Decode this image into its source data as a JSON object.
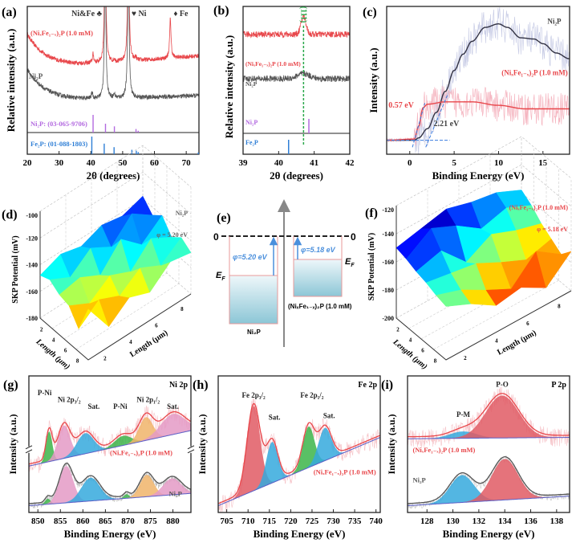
{
  "panel_labels": [
    "(a)",
    "(b)",
    "(c)",
    "(d)",
    "(e)",
    "(f)",
    "(g)",
    "(h)",
    "(i)"
  ],
  "colors": {
    "red": "#e8474b",
    "gray": "#555555",
    "purple": "#b36ae0",
    "blue": "#2f7fd6",
    "green": "#2aa84a"
  },
  "chart_data": [
    {
      "panel": "a",
      "type": "line",
      "xlabel": "2θ (degrees)",
      "ylabel": "Relative intensity (a.u.)",
      "xlim": [
        20,
        74
      ],
      "xticks": [
        20,
        30,
        40,
        50,
        60,
        70
      ],
      "series": [
        {
          "name": "(NiₓFe₁₋ₓ)₂P (1.0 mM)",
          "color": "#e8474b",
          "peaks": [
            [
              40.7,
              0.7
            ],
            [
              44.5,
              12
            ],
            [
              47.4,
              0.2
            ],
            [
              51.8,
              12
            ],
            [
              54.1,
              0.25
            ],
            [
              65.0,
              3.2
            ]
          ]
        },
        {
          "name": "Ni₂P",
          "color": "#555555",
          "peaks": [
            [
              40.4,
              0.5
            ],
            [
              44.5,
              12
            ],
            [
              47.4,
              0.3
            ],
            [
              51.8,
              12
            ]
          ]
        }
      ],
      "peak_labels": [
        {
          "text": "Ni&Fe ♣",
          "x": 44.5
        },
        {
          "text": "♥ Ni",
          "x": 51.8
        },
        {
          "text": "♦ Fe",
          "x": 65.0
        }
      ],
      "references": [
        {
          "name": "Ni₂P: (03-065-9706)",
          "color": "#b36ae0",
          "lines": [
            [
              40.7,
              1
            ],
            [
              44.6,
              0.5
            ],
            [
              47.4,
              0.35
            ],
            [
              54.2,
              0.2
            ],
            [
              54.9,
              0.1
            ]
          ]
        },
        {
          "name": "Fe₂P: (01-088-1803)",
          "color": "#2f7fd6",
          "lines": [
            [
              40.3,
              1
            ],
            [
              44.2,
              0.6
            ],
            [
              47.3,
              0.4
            ],
            [
              52.9,
              0.25
            ],
            [
              54.3,
              0.2
            ],
            [
              54.9,
              0.12
            ],
            [
              73.8,
              0.1
            ]
          ]
        }
      ]
    },
    {
      "panel": "b",
      "type": "line",
      "xlabel": "2θ (degrees)",
      "ylabel": "Relative intensity (a.u.)",
      "xlim": [
        39,
        42
      ],
      "xticks": [
        39,
        40,
        41,
        42
      ],
      "series": [
        {
          "name": "(NiₓFe₁₋ₓ)₂P (1.0 mM)",
          "color": "#e8474b",
          "peak": [
            40.7,
            1.4
          ]
        },
        {
          "name": "Ni₂P",
          "color": "#555555",
          "peak": [
            40.7,
            0.4
          ]
        }
      ],
      "plane_label": "(111)",
      "plane_position": 40.7,
      "references": [
        {
          "name": "Ni₂P",
          "color": "#b36ae0",
          "lines": [
            [
              40.85,
              1
            ]
          ]
        },
        {
          "name": "Fe₂P",
          "color": "#2f7fd6",
          "lines": [
            [
              40.28,
              1
            ]
          ]
        }
      ]
    },
    {
      "panel": "c",
      "type": "line",
      "xlabel": "Binding Energy (eV)",
      "ylabel": "Intensity (a.u.)",
      "xlim": [
        -2.6,
        18
      ],
      "ylim": [
        -0.12,
        1.15
      ],
      "xticks": [
        0,
        5,
        10,
        15
      ],
      "series": [
        {
          "name": "Ni₂P",
          "color": "#333344",
          "raw_color": "#c9cde6",
          "x": [
            -2.6,
            0.5,
            1,
            2,
            3,
            4,
            5,
            6,
            7,
            8.5,
            10,
            11,
            12.5,
            14,
            15,
            16.5,
            18
          ],
          "y": [
            0,
            0,
            0.02,
            0.1,
            0.24,
            0.42,
            0.6,
            0.74,
            0.85,
            0.97,
            1.0,
            0.97,
            0.88,
            0.87,
            0.83,
            0.75,
            0.7
          ]
        },
        {
          "name": "(NiₓFe₁₋ₓ)₂P (1.0 mM)",
          "color": "#e8474b",
          "raw_color": "#f5b5c0",
          "x": [
            -2.6,
            0.5,
            1,
            1.5,
            2,
            4,
            7,
            10,
            13,
            18
          ],
          "y": [
            0,
            0.01,
            0.12,
            0.28,
            0.31,
            0.33,
            0.33,
            0.3,
            0.27,
            0.27
          ]
        }
      ],
      "annotations": [
        {
          "text": "0.57 eV",
          "x": -2.4,
          "y": 0.28,
          "color": "#e8474b"
        },
        {
          "text": "2.21 eV",
          "x": 2.7,
          "y": 0.12,
          "color": "#444444"
        }
      ]
    },
    {
      "panel": "d",
      "type": "surface",
      "zlabel": "SKP Potential (mV)",
      "xlabel": "Length (μm)",
      "ylabel": "Length (μm)",
      "zlim": [
        -180,
        -100
      ],
      "zticks": [
        -100,
        -120,
        -140,
        -160,
        -180
      ],
      "length_ticks": [
        2,
        4,
        6,
        8
      ],
      "sample": "Ni₂P",
      "work_function": "φ = 5.20 eV",
      "grid": [
        [
          -138,
          -143,
          -140,
          -146,
          -142,
          -148
        ],
        [
          -146,
          -135,
          -150,
          -141,
          -153,
          -145
        ],
        [
          -140,
          -152,
          -138,
          -155,
          -147,
          -150
        ],
        [
          -150,
          -141,
          -156,
          -149,
          -160,
          -152
        ],
        [
          -144,
          -155,
          -147,
          -158,
          -151,
          -163
        ],
        [
          -149,
          -146,
          -159,
          -153,
          -165,
          -142
        ]
      ]
    },
    {
      "panel": "e",
      "type": "diagram",
      "vacuum_left": "0",
      "vacuum_right": "0",
      "left": {
        "name": "Ni₂P",
        "phi": "φ=5.20 eV",
        "ef": "E",
        "ef_sub": "F"
      },
      "right": {
        "name": "(NiₓFe₁₋ₓ)₂P (1.0 mM)",
        "phi": "φ=5.18 eV",
        "ef": "E",
        "ef_sub": "F"
      }
    },
    {
      "panel": "f",
      "type": "surface",
      "zlabel": "SKP Potential (mV)",
      "xlabel": "Length (μm)",
      "ylabel": "Length (μm)",
      "zlim": [
        -200,
        -120
      ],
      "zticks": [
        -120,
        -140,
        -160,
        -180,
        -200
      ],
      "length_ticks": [
        2,
        4,
        6,
        8
      ],
      "sample": "(NiₓFe₁₋ₓ)₂P (1.0 mM)",
      "work_function": "φ = 5.18 eV",
      "grid": [
        [
          -158,
          -150,
          -147,
          -142,
          -146,
          -150
        ],
        [
          -163,
          -155,
          -160,
          -148,
          -140,
          -152
        ],
        [
          -170,
          -165,
          -158,
          -168,
          -150,
          -155
        ],
        [
          -175,
          -180,
          -172,
          -163,
          -160,
          -157
        ],
        [
          -180,
          -168,
          -185,
          -176,
          -166,
          -160
        ],
        [
          -172,
          -188,
          -178,
          -181,
          -170,
          -162
        ]
      ]
    },
    {
      "panel": "g",
      "type": "xps",
      "xlabel": "Binding Energy (eV)",
      "ylabel": "Intensity (a.u.)",
      "title": "Ni 2p",
      "xlim": [
        848,
        884
      ],
      "xticks": [
        850,
        855,
        860,
        865,
        870,
        875,
        880
      ],
      "ylim": [
        0,
        1
      ],
      "peak_labels": [
        {
          "text": "P-Ni",
          "x": 851.5,
          "y": 0.86
        },
        {
          "text": "Ni 2p₃/₂",
          "x": 856.5,
          "y": 0.81
        },
        {
          "text": "Sat.",
          "x": 860.5,
          "y": 0.76
        },
        {
          "text": "P-Ni",
          "x": 868.3,
          "y": 0.76
        },
        {
          "text": "Ni 2p₁/₂",
          "x": 874.5,
          "y": 0.81
        },
        {
          "text": "Sat.",
          "x": 880,
          "y": 0.76
        }
      ],
      "spectra": [
        {
          "name": "(NiₓFe₁₋ₓ)₂P (1.0 mM)",
          "color": "#e8474b",
          "raw_color": "#f6c3c8",
          "background": [
            0.34,
            0.6
          ],
          "label_x": 866,
          "label_y": 0.42,
          "components": [
            [
              852.5,
              0.22,
              0.8,
              "#3cb54a"
            ],
            [
              855.8,
              0.24,
              1.6,
              "#e49ac6"
            ],
            [
              860.5,
              0.15,
              2.2,
              "#35a9dd"
            ],
            [
              868.9,
              0.07,
              2.2,
              "#3cb54a"
            ],
            [
              874.0,
              0.17,
              1.8,
              "#f0b46a"
            ],
            [
              880.0,
              0.15,
              3.2,
              "#e49ac6"
            ]
          ]
        },
        {
          "name": "Ni₂P",
          "color": "#555555",
          "raw_color": "#bbbbbb",
          "background": [
            0.05,
            0.14
          ],
          "label_x": 882,
          "label_y": 0.12,
          "components": [
            [
              852.2,
              0.04,
              0.7,
              "#3cb54a"
            ],
            [
              856.3,
              0.27,
              1.8,
              "#e49ac6"
            ],
            [
              861.7,
              0.17,
              2.4,
              "#35a9dd"
            ],
            [
              869.7,
              0.03,
              0.7,
              "#3cb54a"
            ],
            [
              874.2,
              0.16,
              1.8,
              "#f0b46a"
            ],
            [
              879.8,
              0.12,
              2.4,
              "#e49ac6"
            ]
          ]
        }
      ]
    },
    {
      "panel": "h",
      "type": "xps",
      "xlabel": "Binding Energy (eV)",
      "ylabel": "Intensity (a.u.)",
      "title": "Fe 2p",
      "xlim": [
        703,
        741
      ],
      "xticks": [
        705,
        710,
        715,
        720,
        725,
        730,
        735,
        740
      ],
      "ylim": [
        0,
        1
      ],
      "peak_labels": [
        {
          "text": "Fe 2p₃/₂",
          "x": 711.3,
          "y": 0.84
        },
        {
          "text": "Sat.",
          "x": 716.2,
          "y": 0.68
        },
        {
          "text": "Fe 2p₁/₂",
          "x": 725,
          "y": 0.84
        },
        {
          "text": "Sat.",
          "x": 729,
          "y": 0.69
        }
      ],
      "spectra": [
        {
          "name": "(NiₓFe₁₋ₓ)₂P (1.0 mM)",
          "color": "#e8474b",
          "raw_color": "#f6c3c8",
          "background": [
            0.05,
            0.55
          ],
          "label_x": 740,
          "label_y": 0.28,
          "components": [
            [
              711.3,
              0.62,
              1.8,
              "#e05a64"
            ],
            [
              715.6,
              0.3,
              1.6,
              "#35a9dd"
            ],
            [
              724.2,
              0.3,
              1.6,
              "#3cb54a"
            ],
            [
              728.0,
              0.24,
              1.8,
              "#35a9dd"
            ]
          ]
        }
      ]
    },
    {
      "panel": "i",
      "type": "xps",
      "xlabel": "Binding Energy (eV)",
      "ylabel": "Intensity (a.u.)",
      "title": "P 2p",
      "xlim": [
        126.5,
        139
      ],
      "xticks": [
        128,
        130,
        132,
        134,
        136,
        138
      ],
      "ylim": [
        0,
        1
      ],
      "peak_labels": [
        {
          "text": "P-M",
          "x": 130.8,
          "y": 0.7
        },
        {
          "text": "P-O",
          "x": 133.8,
          "y": 0.92
        }
      ],
      "spectra": [
        {
          "name": "(NiₓFe₁₋ₓ)₂P (1.0 mM)",
          "color": "#e8474b",
          "raw_color": "#f6c3c8",
          "background": [
            0.54,
            0.55
          ],
          "label_x": 126.9,
          "label_y": 0.44,
          "components": [
            [
              130.8,
              0.05,
              1.2,
              "#35a9dd"
            ],
            [
              133.8,
              0.31,
              1.5,
              "#e05a64"
            ]
          ]
        },
        {
          "name": "Ni₂P",
          "color": "#555555",
          "raw_color": "#cccccc",
          "background": [
            0.05,
            0.12
          ],
          "label_x": 126.9,
          "label_y": 0.22,
          "components": [
            [
              130.7,
              0.2,
              1.1,
              "#35a9dd"
            ],
            [
              134.0,
              0.3,
              1.2,
              "#e05a64"
            ]
          ]
        }
      ]
    }
  ]
}
